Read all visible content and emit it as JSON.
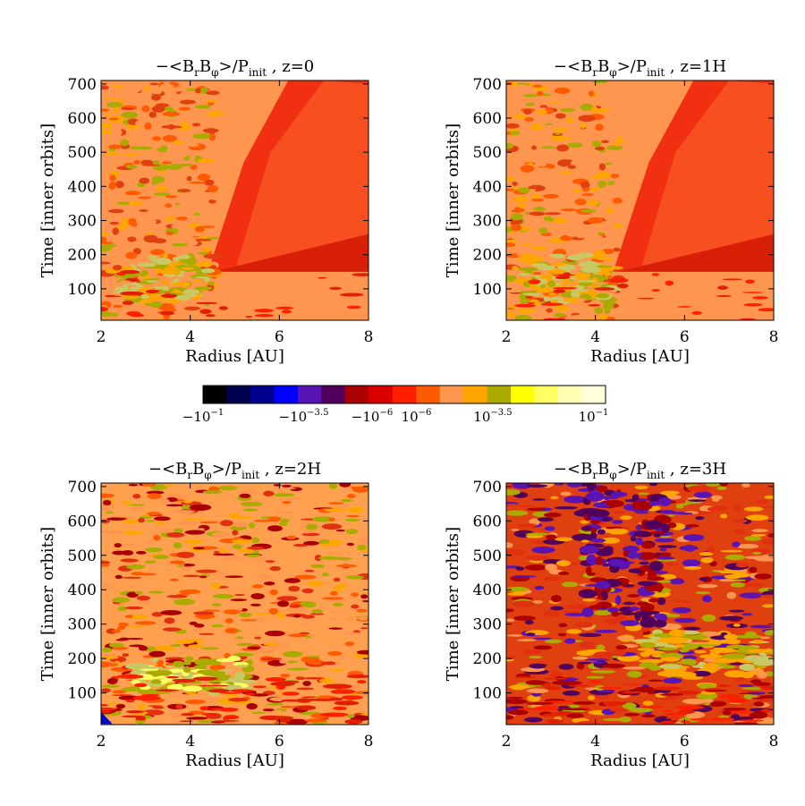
{
  "chart_data": {
    "type": "heatmap",
    "panels": [
      {
        "title_prefix": "−<B",
        "title_r": "r",
        "title_mid": "B",
        "title_phi": "φ",
        "title_slash": ">/P",
        "title_init": "init",
        "title_suffix": " ,  z=0",
        "xlabel": "Radius [AU]",
        "ylabel": "Time [inner orbits]",
        "xlim": [
          2,
          8
        ],
        "ylim": [
          8,
          710
        ],
        "xticks": [
          2,
          4,
          6,
          8
        ],
        "yticks": [
          100,
          200,
          300,
          400,
          500,
          600,
          700
        ],
        "xtick_labels": [
          "2",
          "4",
          "6",
          "8"
        ],
        "ytick_labels": [
          "100",
          "200",
          "300",
          "400",
          "500",
          "600",
          "700"
        ],
        "pattern": "z0"
      },
      {
        "title_prefix": "−<B",
        "title_r": "r",
        "title_mid": "B",
        "title_phi": "φ",
        "title_slash": ">/P",
        "title_init": "init",
        "title_suffix": " ,  z=1H",
        "xlabel": "Radius [AU]",
        "ylabel": "Time [inner orbits]",
        "xlim": [
          2,
          8
        ],
        "ylim": [
          8,
          710
        ],
        "xticks": [
          2,
          4,
          6,
          8
        ],
        "yticks": [
          100,
          200,
          300,
          400,
          500,
          600,
          700
        ],
        "xtick_labels": [
          "2",
          "4",
          "6",
          "8"
        ],
        "ytick_labels": [
          "100",
          "200",
          "300",
          "400",
          "500",
          "600",
          "700"
        ],
        "pattern": "z1"
      },
      {
        "title_prefix": "−<B",
        "title_r": "r",
        "title_mid": "B",
        "title_phi": "φ",
        "title_slash": ">/P",
        "title_init": "init",
        "title_suffix": " ,  z=2H",
        "xlabel": "Radius [AU]",
        "ylabel": "Time [inner orbits]",
        "xlim": [
          2,
          8
        ],
        "ylim": [
          8,
          710
        ],
        "xticks": [
          2,
          4,
          6,
          8
        ],
        "yticks": [
          100,
          200,
          300,
          400,
          500,
          600,
          700
        ],
        "xtick_labels": [
          "2",
          "4",
          "6",
          "8"
        ],
        "ytick_labels": [
          "100",
          "200",
          "300",
          "400",
          "500",
          "600",
          "700"
        ],
        "pattern": "z2"
      },
      {
        "title_prefix": "−<B",
        "title_r": "r",
        "title_mid": "B",
        "title_phi": "φ",
        "title_slash": ">/P",
        "title_init": "init",
        "title_suffix": " ,  z=3H",
        "xlabel": "Radius [AU]",
        "ylabel": "Time [inner orbits]",
        "xlim": [
          2,
          8
        ],
        "ylim": [
          8,
          710
        ],
        "xticks": [
          2,
          4,
          6,
          8
        ],
        "yticks": [
          100,
          200,
          300,
          400,
          500,
          600,
          700
        ],
        "xtick_labels": [
          "2",
          "4",
          "6",
          "8"
        ],
        "ytick_labels": [
          "100",
          "200",
          "300",
          "400",
          "500",
          "600",
          "700"
        ],
        "pattern": "z3"
      }
    ],
    "colorbar": {
      "colors": [
        "#000000",
        "#000050",
        "#00008c",
        "#0000ff",
        "#5a14b4",
        "#50005a",
        "#aa0000",
        "#dc0000",
        "#ff1e00",
        "#ff5a00",
        "#ff9650",
        "#ffa500",
        "#aaaa00",
        "#ffff00",
        "#ffff64",
        "#ffffb4",
        "#ffffdc"
      ],
      "labels": [
        {
          "text": "−10",
          "exp": "−1",
          "pos": 0.0
        },
        {
          "text": "−10",
          "exp": "−3.5",
          "pos": 0.25
        },
        {
          "text": "−10",
          "exp": "−6",
          "pos": 0.42
        },
        {
          "text": "10",
          "exp": "−6",
          "pos": 0.53
        },
        {
          "text": "10",
          "exp": "−3.5",
          "pos": 0.72
        },
        {
          "text": "10",
          "exp": "−1",
          "pos": 0.97
        }
      ]
    }
  }
}
